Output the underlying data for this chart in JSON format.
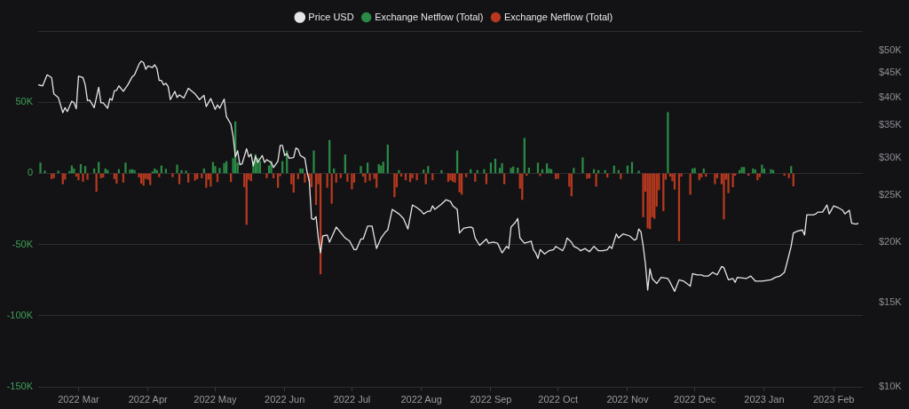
{
  "chart_data": {
    "type": "bar",
    "xlim": [
      "2022-02-11",
      "2023-02-14"
    ],
    "xticks": [
      {
        "value": "2022-03-01",
        "label": "2022 Mar"
      },
      {
        "value": "2022-04-01",
        "label": "2022 Apr"
      },
      {
        "value": "2022-05-01",
        "label": "2022 May"
      },
      {
        "value": "2022-06-01",
        "label": "2022 Jun"
      },
      {
        "value": "2022-07-01",
        "label": "2022 Jul"
      },
      {
        "value": "2022-08-01",
        "label": "2022 Aug"
      },
      {
        "value": "2022-09-01",
        "label": "2022 Sep"
      },
      {
        "value": "2022-10-01",
        "label": "2022 Oct"
      },
      {
        "value": "2022-11-01",
        "label": "2022 Nov"
      },
      {
        "value": "2022-12-01",
        "label": "2022 Dec"
      },
      {
        "value": "2023-01-01",
        "label": "2023 Jan"
      },
      {
        "value": "2023-02-01",
        "label": "2023 Feb"
      }
    ],
    "ylim": [
      -150000,
      100000
    ],
    "yticks": [
      {
        "value": -150000,
        "label": "-150K"
      },
      {
        "value": -100000,
        "label": "-100K"
      },
      {
        "value": -50000,
        "label": "-50K"
      },
      0,
      {
        "value": 50000,
        "label": "50K"
      },
      {
        "value": 100000,
        "label": null
      }
    ],
    "y2lim": [
      10000,
      55000
    ],
    "y2ticks": [
      {
        "value": 10000,
        "label": "$10K"
      },
      {
        "value": 15000,
        "label": "$15K"
      },
      {
        "value": 20000,
        "label": "$20K"
      },
      {
        "value": 25000,
        "label": "$25K"
      },
      {
        "value": 30000,
        "label": "$30K"
      },
      {
        "value": 35000,
        "label": "$35K"
      },
      {
        "value": 40000,
        "label": "$40K"
      },
      {
        "value": 45000,
        "label": "$45K"
      },
      {
        "value": 50000,
        "label": "$50K"
      }
    ],
    "log": "y2",
    "grid": "y",
    "legend": "top",
    "marker": "none",
    "series": [
      {
        "name": "Price USD",
        "type": "line",
        "axis": "y2",
        "color": "#e6e6e6",
        "x": [
          "2022-02-11",
          "2022-02-13",
          "2022-02-15",
          "2022-02-17",
          "2022-02-18",
          "2022-02-20",
          "2022-02-22",
          "2022-02-23",
          "2022-02-24",
          "2022-02-26",
          "2022-02-27",
          "2022-02-28",
          "2022-03-01",
          "2022-03-03",
          "2022-03-04",
          "2022-03-05",
          "2022-03-06",
          "2022-03-08",
          "2022-03-10",
          "2022-03-11",
          "2022-03-12",
          "2022-03-14",
          "2022-03-15",
          "2022-03-16",
          "2022-03-17",
          "2022-03-18",
          "2022-03-19",
          "2022-03-21",
          "2022-03-23",
          "2022-03-25",
          "2022-03-26",
          "2022-03-28",
          "2022-03-29",
          "2022-03-30",
          "2022-03-31",
          "2022-04-01",
          "2022-04-03",
          "2022-04-04",
          "2022-04-05",
          "2022-04-06",
          "2022-04-07",
          "2022-04-08",
          "2022-04-09",
          "2022-04-10",
          "2022-04-11",
          "2022-04-13",
          "2022-04-14",
          "2022-04-15",
          "2022-04-17",
          "2022-04-19",
          "2022-04-22",
          "2022-04-24",
          "2022-04-26",
          "2022-04-27",
          "2022-04-29",
          "2022-05-01",
          "2022-05-02",
          "2022-05-03",
          "2022-05-05",
          "2022-05-06",
          "2022-05-08",
          "2022-05-09",
          "2022-05-10",
          "2022-05-11",
          "2022-05-12",
          "2022-05-13",
          "2022-05-15",
          "2022-05-16",
          "2022-05-17",
          "2022-05-18",
          "2022-05-19",
          "2022-05-20",
          "2022-05-22",
          "2022-05-23",
          "2022-05-24",
          "2022-05-26",
          "2022-05-27",
          "2022-05-29",
          "2022-05-30",
          "2022-05-31",
          "2022-06-01",
          "2022-06-02",
          "2022-06-03",
          "2022-06-05",
          "2022-06-06",
          "2022-06-07",
          "2022-06-08",
          "2022-06-10",
          "2022-06-11",
          "2022-06-12",
          "2022-06-13",
          "2022-06-14",
          "2022-06-15",
          "2022-06-16",
          "2022-06-17",
          "2022-06-18",
          "2022-06-20",
          "2022-06-21",
          "2022-06-24",
          "2022-06-28",
          "2022-06-30",
          "2022-07-02",
          "2022-07-03",
          "2022-07-05",
          "2022-07-06",
          "2022-07-08",
          "2022-07-10",
          "2022-07-12",
          "2022-07-14",
          "2022-07-16",
          "2022-07-17",
          "2022-07-19",
          "2022-07-22",
          "2022-07-24",
          "2022-07-26",
          "2022-07-28",
          "2022-07-30",
          "2022-08-01",
          "2022-08-02",
          "2022-08-04",
          "2022-08-05",
          "2022-08-06",
          "2022-08-07",
          "2022-08-10",
          "2022-08-12",
          "2022-08-14",
          "2022-08-15",
          "2022-08-17",
          "2022-08-18",
          "2022-08-20",
          "2022-08-23",
          "2022-08-24",
          "2022-08-25",
          "2022-08-27",
          "2022-08-30",
          "2022-08-31",
          "2022-09-02",
          "2022-09-04",
          "2022-09-06",
          "2022-09-08",
          "2022-09-09",
          "2022-09-10",
          "2022-09-12",
          "2022-09-13",
          "2022-09-14",
          "2022-09-16",
          "2022-09-19",
          "2022-09-20",
          "2022-09-21",
          "2022-09-22",
          "2022-09-23",
          "2022-09-25",
          "2022-09-27",
          "2022-09-29",
          "2022-09-30",
          "2022-10-03",
          "2022-10-04",
          "2022-10-05",
          "2022-10-07",
          "2022-10-08",
          "2022-10-10",
          "2022-10-11",
          "2022-10-13",
          "2022-10-15",
          "2022-10-17",
          "2022-10-19",
          "2022-10-21",
          "2022-10-23",
          "2022-10-24",
          "2022-10-25",
          "2022-10-27",
          "2022-10-28",
          "2022-10-30",
          "2022-11-02",
          "2022-11-04",
          "2022-11-05",
          "2022-11-06",
          "2022-11-07",
          "2022-11-08",
          "2022-11-09",
          "2022-11-10",
          "2022-11-11",
          "2022-11-12",
          "2022-11-14",
          "2022-11-16",
          "2022-11-19",
          "2022-11-20",
          "2022-11-22",
          "2022-11-24",
          "2022-11-26",
          "2022-11-29",
          "2022-11-30",
          "2022-12-02",
          "2022-12-04",
          "2022-12-05",
          "2022-12-07",
          "2022-12-09",
          "2022-12-11",
          "2022-12-13",
          "2022-12-14",
          "2022-12-16",
          "2022-12-18",
          "2022-12-19",
          "2022-12-20",
          "2022-12-24",
          "2022-12-26",
          "2022-12-28",
          "2022-12-31",
          "2023-01-04",
          "2023-01-06",
          "2023-01-08",
          "2023-01-10",
          "2023-01-11",
          "2023-01-13",
          "2023-01-14",
          "2023-01-16",
          "2023-01-18",
          "2023-01-19",
          "2023-01-20",
          "2023-01-23",
          "2023-01-24",
          "2023-01-25",
          "2023-01-27",
          "2023-01-29",
          "2023-01-30",
          "2023-02-01",
          "2023-02-03",
          "2023-02-05",
          "2023-02-06",
          "2023-02-08",
          "2023-02-09",
          "2023-02-11",
          "2023-02-12"
        ],
        "values": [
          42500,
          42300,
          44600,
          44000,
          40700,
          40000,
          37200,
          38100,
          37400,
          39300,
          39000,
          37900,
          44300,
          44000,
          42500,
          39400,
          39500,
          38100,
          42000,
          39000,
          39000,
          38000,
          39800,
          39500,
          41300,
          41400,
          42300,
          41200,
          42500,
          44200,
          44600,
          46900,
          47600,
          47300,
          45800,
          46500,
          46200,
          46800,
          46000,
          43400,
          43400,
          42500,
          42800,
          42200,
          39600,
          41200,
          40000,
          40500,
          39900,
          41800,
          40700,
          39600,
          40400,
          38300,
          39800,
          37800,
          38600,
          38000,
          39700,
          36500,
          35200,
          33200,
          30100,
          31000,
          29000,
          29100,
          31300,
          30100,
          30500,
          28800,
          30200,
          29300,
          30300,
          29300,
          29700,
          29300,
          28600,
          29500,
          31800,
          31800,
          30300,
          30600,
          29900,
          30000,
          31400,
          31200,
          30300,
          29900,
          28000,
          26800,
          22400,
          22300,
          22600,
          20400,
          19000,
          20600,
          20700,
          20000,
          21500,
          20400,
          20100,
          19300,
          19300,
          20300,
          20300,
          21600,
          21600,
          19400,
          20400,
          21000,
          21200,
          23400,
          22900,
          22400,
          21300,
          23900,
          23600,
          23200,
          22900,
          23200,
          23200,
          23800,
          23400,
          24000,
          24500,
          24300,
          23800,
          23400,
          20900,
          21400,
          21500,
          21400,
          20400,
          19700,
          20300,
          19900,
          20000,
          19900,
          19000,
          19600,
          19400,
          21500,
          22000,
          22400,
          20400,
          19900,
          20100,
          19300,
          19000,
          18500,
          19300,
          18900,
          19200,
          19300,
          19600,
          19200,
          19600,
          20400,
          20000,
          19600,
          19400,
          19200,
          19400,
          19100,
          19600,
          19200,
          19200,
          19300,
          19600,
          19400,
          20800,
          20400,
          20800,
          20600,
          20200,
          20300,
          21300,
          21000,
          19600,
          18000,
          15900,
          17600,
          16800,
          16400,
          16900,
          16800,
          16500,
          15800,
          16700,
          16600,
          16200,
          17200,
          17100,
          17100,
          17000,
          17000,
          17300,
          17100,
          17800,
          17700,
          16700,
          16800,
          16500,
          16900,
          16800,
          17000,
          16600,
          16600,
          16700,
          16900,
          17000,
          17300,
          18000,
          19600,
          20900,
          21100,
          21200,
          20700,
          22800,
          22800,
          22900,
          23100,
          23100,
          23900,
          22900,
          23800,
          23600,
          23300,
          22900,
          23300,
          21900,
          21800,
          21900
        ]
      },
      {
        "name": "Exchange Netflow (Total)",
        "color": "#2b8a45",
        "x": [
          "2022-02-12",
          "2022-02-14",
          "2022-02-20",
          "2022-02-25",
          "2022-02-26",
          "2022-02-27",
          "2022-03-02",
          "2022-03-04",
          "2022-03-08",
          "2022-03-10",
          "2022-03-13",
          "2022-03-14",
          "2022-03-19",
          "2022-03-22",
          "2022-03-24",
          "2022-03-25",
          "2022-03-26",
          "2022-04-03",
          "2022-04-04",
          "2022-04-05",
          "2022-04-07",
          "2022-04-09",
          "2022-04-14",
          "2022-04-16",
          "2022-04-18",
          "2022-04-26",
          "2022-04-30",
          "2022-05-01",
          "2022-05-03",
          "2022-05-05",
          "2022-05-06",
          "2022-05-09",
          "2022-05-10",
          "2022-05-11",
          "2022-05-18",
          "2022-05-19",
          "2022-05-20",
          "2022-05-21",
          "2022-05-25",
          "2022-05-26",
          "2022-05-31",
          "2022-06-02",
          "2022-06-08",
          "2022-06-09",
          "2022-06-11",
          "2022-06-14",
          "2022-06-21",
          "2022-06-23",
          "2022-06-28",
          "2022-07-05",
          "2022-07-08",
          "2022-07-13",
          "2022-07-14",
          "2022-07-15",
          "2022-07-17",
          "2022-07-22",
          "2022-08-02",
          "2022-08-04",
          "2022-08-10",
          "2022-08-17",
          "2022-08-23",
          "2022-08-26",
          "2022-08-29",
          "2022-09-01",
          "2022-09-03",
          "2022-09-05",
          "2022-09-06",
          "2022-09-10",
          "2022-09-11",
          "2022-09-13",
          "2022-09-16",
          "2022-09-18",
          "2022-09-22",
          "2022-09-24",
          "2022-09-26",
          "2022-09-27",
          "2022-09-28",
          "2022-10-08",
          "2022-10-12",
          "2022-10-17",
          "2022-10-19",
          "2022-10-22",
          "2022-10-26",
          "2022-10-28",
          "2022-11-01",
          "2022-11-03",
          "2022-11-06",
          "2022-11-19",
          "2022-11-30",
          "2022-12-01",
          "2022-12-05",
          "2022-12-21",
          "2022-12-22",
          "2022-12-23",
          "2022-12-27",
          "2022-12-28",
          "2022-12-31",
          "2023-01-01",
          "2023-01-04",
          "2023-01-05",
          "2023-01-13"
        ],
        "values": [
          7400,
          1700,
          1700,
          1500,
          5300,
          3200,
          6300,
          4900,
          3200,
          7800,
          3200,
          2100,
          2700,
          7400,
          2500,
          2700,
          2100,
          1100,
          3200,
          2100,
          5300,
          3000,
          5900,
          2100,
          1700,
          3200,
          7800,
          4900,
          3600,
          7000,
          8400,
          10500,
          36300,
          7400,
          8400,
          13300,
          10500,
          8400,
          5300,
          8400,
          8400,
          15800,
          3200,
          3200,
          null,
          15800,
          23200,
          3200,
          13100,
          4900,
          7400,
          6300,
          5300,
          8000,
          20000,
          2100,
          2500,
          4900,
          2100,
          15800,
          2700,
          2100,
          2700,
          7400,
          10100,
          3600,
          7000,
          3600,
          4600,
          3800,
          24700,
          3800,
          7400,
          2700,
          6800,
          3200,
          2700,
          3600,
          11000,
          2700,
          2100,
          2100,
          5300,
          2100,
          5300,
          7800,
          1700,
          42800,
          3200,
          3600,
          3200,
          2100,
          4200,
          4200,
          3200,
          2500,
          5900,
          3200,
          2700,
          2100,
          4900
        ]
      },
      {
        "name": "Exchange Netflow (Total)",
        "color": "#b8391f",
        "x": [
          "2022-02-17",
          "2022-02-18",
          "2022-02-22",
          "2022-02-23",
          "2022-02-28",
          "2022-03-01",
          "2022-03-03",
          "2022-03-05",
          "2022-03-06",
          "2022-03-09",
          "2022-03-11",
          "2022-03-12",
          "2022-03-17",
          "2022-03-18",
          "2022-03-21",
          "2022-03-28",
          "2022-03-29",
          "2022-03-30",
          "2022-03-31",
          "2022-04-01",
          "2022-04-02",
          "2022-04-06",
          "2022-04-12",
          "2022-04-15",
          "2022-04-19",
          "2022-04-22",
          "2022-04-23",
          "2022-04-25",
          "2022-04-27",
          "2022-04-28",
          "2022-04-29",
          "2022-05-02",
          "2022-05-08",
          "2022-05-14",
          "2022-05-15",
          "2022-05-16",
          "2022-05-17",
          "2022-05-24",
          "2022-05-27",
          "2022-05-29",
          "2022-05-30",
          "2022-06-04",
          "2022-06-05",
          "2022-06-07",
          "2022-06-10",
          "2022-06-12",
          "2022-06-13",
          "2022-06-15",
          "2022-06-16",
          "2022-06-17",
          "2022-06-20",
          "2022-06-22",
          "2022-06-24",
          "2022-06-26",
          "2022-06-29",
          "2022-07-01",
          "2022-07-02",
          "2022-07-06",
          "2022-07-07",
          "2022-07-09",
          "2022-07-11",
          "2022-07-12",
          "2022-07-20",
          "2022-07-21",
          "2022-07-23",
          "2022-07-25",
          "2022-07-27",
          "2022-07-28",
          "2022-07-30",
          "2022-08-03",
          "2022-08-06",
          "2022-08-13",
          "2022-08-14",
          "2022-08-15",
          "2022-08-16",
          "2022-08-18",
          "2022-08-19",
          "2022-08-21",
          "2022-08-25",
          "2022-08-30",
          "2022-09-07",
          "2022-09-14",
          "2022-09-15",
          "2022-09-17",
          "2022-09-23",
          "2022-09-30",
          "2022-10-01",
          "2022-10-06",
          "2022-10-07",
          "2022-10-14",
          "2022-10-15",
          "2022-10-18",
          "2022-10-23",
          "2022-10-29",
          "2022-11-08",
          "2022-11-09",
          "2022-11-10",
          "2022-11-11",
          "2022-11-12",
          "2022-11-13",
          "2022-11-14",
          "2022-11-15",
          "2022-11-17",
          "2022-11-18",
          "2022-11-20",
          "2022-11-21",
          "2022-11-22",
          "2022-11-24",
          "2022-11-25",
          "2022-11-29",
          "2022-12-03",
          "2022-12-04",
          "2022-12-06",
          "2022-12-10",
          "2022-12-11",
          "2022-12-13",
          "2022-12-14",
          "2022-12-15",
          "2022-12-16",
          "2022-12-18",
          "2022-12-19",
          "2022-12-25",
          "2022-12-29",
          "2022-12-30",
          "2023-01-10",
          "2023-01-12",
          "2023-01-14"
        ],
        "values": [
          -3800,
          -3200,
          -7400,
          -4200,
          -2100,
          -4600,
          -5700,
          -4200,
          null,
          -12700,
          -3200,
          -2700,
          -3800,
          -7000,
          -6300,
          -2700,
          -7000,
          -8400,
          -3600,
          -4200,
          -8000,
          -2500,
          -2500,
          -7400,
          -6300,
          -4900,
          -3800,
          -3200,
          -9900,
          -4200,
          -9100,
          -5900,
          -5900,
          -9500,
          -35900,
          -4200,
          -5300,
          -3200,
          -3200,
          -9900,
          -1700,
          -7400,
          -13300,
          -3800,
          -6300,
          -5300,
          -9500,
          -22000,
          -7400,
          -70700,
          -9900,
          -21100,
          -6300,
          -3200,
          -5700,
          -11000,
          -6300,
          -2100,
          -6300,
          -4900,
          -3600,
          -9900,
          -16500,
          -9500,
          -2100,
          -4600,
          -5900,
          -3200,
          -4600,
          -7400,
          -4600,
          -5700,
          -4600,
          -5700,
          -6300,
          -13100,
          -14800,
          -2500,
          -5700,
          -7400,
          -7400,
          -10500,
          -18400,
          -1500,
          -1700,
          -3800,
          -3600,
          -9100,
          -15800,
          -3600,
          -3200,
          -9100,
          -2700,
          -3800,
          -30600,
          -12700,
          -38400,
          -39000,
          -30600,
          -31700,
          -23200,
          -11600,
          -26400,
          -4200,
          -2100,
          -5300,
          -11200,
          -47500,
          -2100,
          -14800,
          -4600,
          -2700,
          -2100,
          -7400,
          -3200,
          -7400,
          -32100,
          -4200,
          -13700,
          -9500,
          -1500,
          -1500,
          -4600,
          -2500,
          -1500,
          -3200,
          -8900
        ]
      }
    ]
  }
}
